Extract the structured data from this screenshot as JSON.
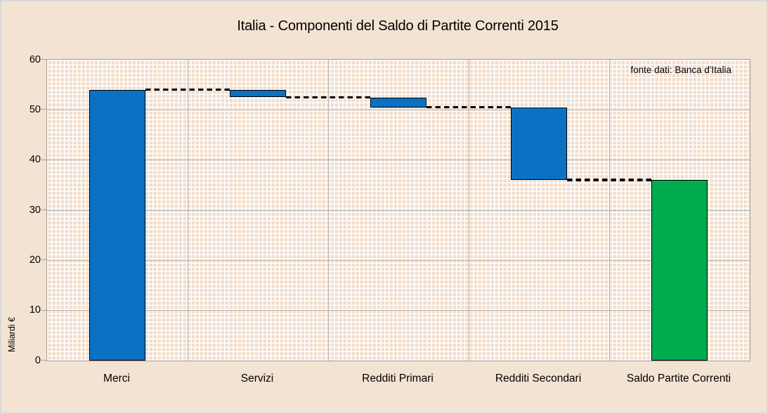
{
  "title": "Italia - Componenti del Saldo di Partite Correnti 2015",
  "source_note": "fonte dati: Banca d'Italia",
  "y_axis_label": "Miliardi €",
  "chart_data": {
    "type": "bar",
    "subtype": "waterfall",
    "title": "Italia - Componenti del Saldo di Partite Correnti 2015",
    "ylabel": "Miliardi €",
    "xlabel": "",
    "source_note": "fonte dati: Banca d'Italia",
    "ylim": [
      0,
      60
    ],
    "yticks": [
      0,
      10,
      20,
      30,
      40,
      50,
      60
    ],
    "grid": "horizontal gridlines every 10 plus vertical category-boundary gridlines",
    "legend": "none",
    "categories": [
      "Merci",
      "Servizi",
      "Redditi Primari",
      "Redditi Secondari",
      "Saldo Partite Correnti"
    ],
    "bars": [
      {
        "label": "Merci",
        "start": 0,
        "end": 54,
        "delta": 54,
        "role": "increase",
        "color_key": "component"
      },
      {
        "label": "Servizi",
        "start": 54,
        "end": 52.5,
        "delta": -1.5,
        "role": "decrease",
        "color_key": "component"
      },
      {
        "label": "Redditi Primari",
        "start": 52.5,
        "end": 50.5,
        "delta": -2,
        "role": "decrease",
        "color_key": "component"
      },
      {
        "label": "Redditi Secondari",
        "start": 50.5,
        "end": 36,
        "delta": -14.5,
        "role": "decrease",
        "color_key": "component"
      },
      {
        "label": "Saldo Partite Correnti",
        "start": 0,
        "end": 36,
        "delta": 36,
        "role": "total",
        "color_key": "total"
      }
    ],
    "connectors": [
      {
        "value": 54,
        "from_category": 0,
        "to_category": 1
      },
      {
        "value": 52.5,
        "from_category": 1,
        "to_category": 2
      },
      {
        "value": 50.5,
        "from_category": 2,
        "to_category": 3
      },
      {
        "value": 36,
        "from_category": 3,
        "to_category": 4
      }
    ],
    "colors": {
      "component": "#0a71c3",
      "total": "#00ab50",
      "bar_border": "#000000",
      "connector": "#000000",
      "figure_background": "#f3e3d3",
      "plot_pattern_base": "#f0ddcc",
      "plot_pattern_line": "#ffffff",
      "gridline": "#b9b5af",
      "axis_border": "#a09c96",
      "text": "#000000"
    }
  }
}
